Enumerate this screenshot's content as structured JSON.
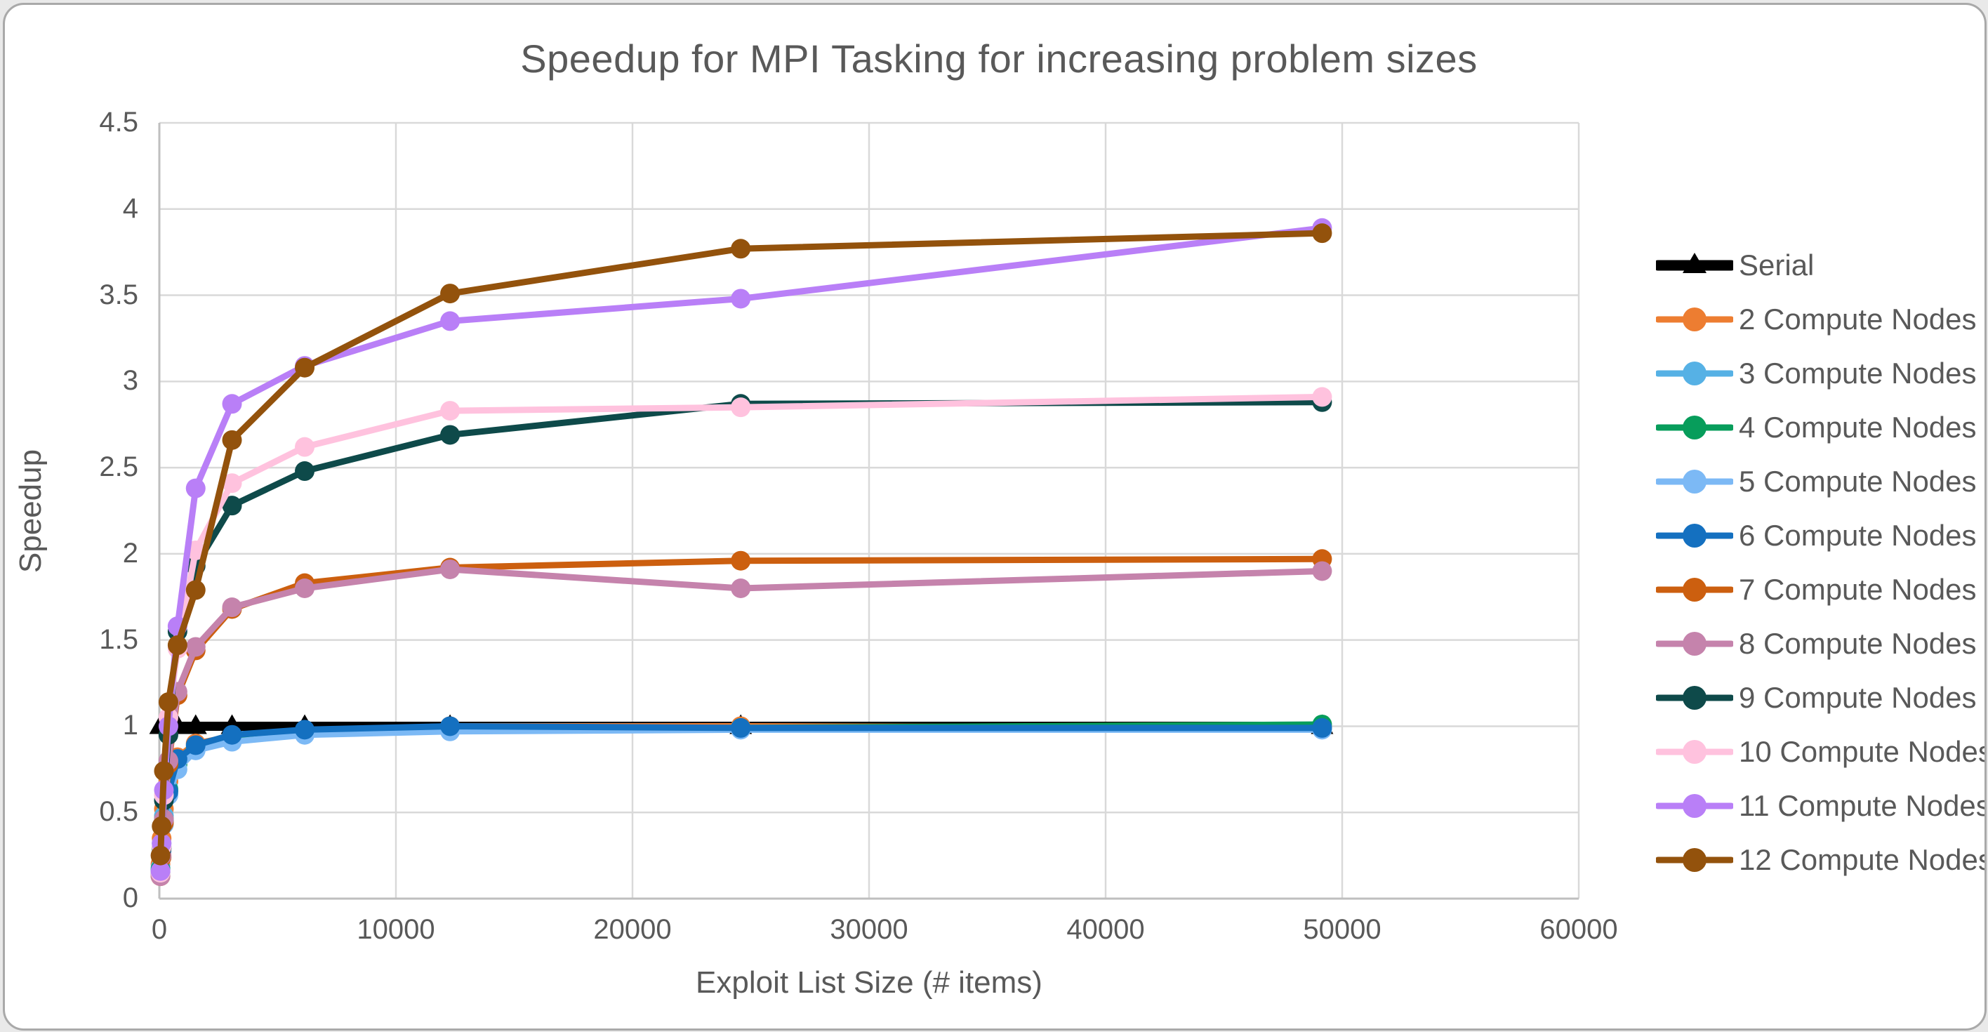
{
  "chart_data": {
    "type": "line",
    "title": "Speedup for MPI Tasking for increasing problem sizes",
    "xlabel": "Exploit List Size (# items)",
    "ylabel": "Speedup",
    "xlim": [
      0,
      60000
    ],
    "ylim": [
      0,
      4.5
    ],
    "x_ticks": [
      0,
      10000,
      20000,
      30000,
      40000,
      50000,
      60000
    ],
    "x_tick_labels": [
      "0",
      "10000",
      "20000",
      "30000",
      "40000",
      "50000",
      "60000"
    ],
    "y_ticks": [
      0,
      0.5,
      1,
      1.5,
      2,
      2.5,
      3,
      3.5,
      4,
      4.5
    ],
    "y_tick_labels": [
      "0",
      "0.5",
      "1",
      "1.5",
      "2",
      "2.5",
      "3",
      "3.5",
      "4",
      "4.5"
    ],
    "grid": true,
    "gridline_color": "#d9d9d9",
    "axis_line_color": "#bfbfbf",
    "text_color": "#595959",
    "legend_position": "right",
    "x": [
      48,
      96,
      192,
      384,
      768,
      1536,
      3072,
      6144,
      12288,
      24576,
      49152
    ],
    "series": [
      {
        "name": "Serial",
        "slug": "serial",
        "color": "#000000",
        "marker": "triangle",
        "values": [
          1.0,
          1.0,
          1.0,
          1.0,
          1.0,
          1.0,
          1.0,
          1.0,
          1.0,
          1.0,
          1.0
        ]
      },
      {
        "name": "2 Compute Nodes",
        "slug": "2-compute-nodes",
        "color": "#ED7D31",
        "marker": "circle",
        "values": [
          0.2,
          0.35,
          0.52,
          0.68,
          0.82,
          0.9,
          0.94,
          0.97,
          1.0,
          1.0,
          0.99
        ]
      },
      {
        "name": "3 Compute Nodes",
        "slug": "3-compute-nodes",
        "color": "#56B1E5",
        "marker": "circle",
        "values": [
          0.18,
          0.32,
          0.48,
          0.64,
          0.79,
          0.88,
          0.92,
          0.96,
          0.98,
          0.99,
          0.99
        ]
      },
      {
        "name": "4 Compute Nodes",
        "slug": "4-compute-nodes",
        "color": "#079D5B",
        "marker": "circle",
        "values": [
          0.17,
          0.3,
          0.46,
          0.63,
          0.78,
          0.87,
          0.93,
          0.96,
          0.99,
          0.99,
          1.01
        ]
      },
      {
        "name": "5 Compute Nodes",
        "slug": "5-compute-nodes",
        "color": "#7CB9F5",
        "marker": "circle",
        "values": [
          0.15,
          0.27,
          0.43,
          0.6,
          0.75,
          0.86,
          0.91,
          0.95,
          0.97,
          0.98,
          0.98
        ]
      },
      {
        "name": "6 Compute Nodes",
        "slug": "6-compute-nodes",
        "color": "#1470C0",
        "marker": "circle",
        "values": [
          0.16,
          0.29,
          0.45,
          0.62,
          0.81,
          0.89,
          0.95,
          0.98,
          1.0,
          0.99,
          0.99
        ]
      },
      {
        "name": "7 Compute Nodes",
        "slug": "7-compute-nodes",
        "color": "#CC5F0F",
        "marker": "circle",
        "values": [
          0.13,
          0.24,
          0.44,
          0.78,
          1.18,
          1.44,
          1.68,
          1.83,
          1.92,
          1.96,
          1.97
        ]
      },
      {
        "name": "8 Compute Nodes",
        "slug": "8-compute-nodes",
        "color": "#C583AC",
        "marker": "circle",
        "values": [
          0.13,
          0.25,
          0.46,
          0.8,
          1.2,
          1.46,
          1.69,
          1.8,
          1.91,
          1.8,
          1.9
        ]
      },
      {
        "name": "9 Compute Nodes",
        "slug": "9-compute-nodes",
        "color": "#0E4A4A",
        "marker": "circle",
        "values": [
          0.15,
          0.29,
          0.57,
          0.95,
          1.55,
          1.93,
          2.28,
          2.48,
          2.69,
          2.87,
          2.88
        ]
      },
      {
        "name": "10 Compute Nodes",
        "slug": "10-compute-nodes",
        "color": "#FFC2DE",
        "marker": "circle",
        "values": [
          0.15,
          0.3,
          0.6,
          1.05,
          1.45,
          2.02,
          2.41,
          2.62,
          2.83,
          2.85,
          2.91
        ]
      },
      {
        "name": "11 Compute Nodes",
        "slug": "11-compute-nodes",
        "color": "#B97FF7",
        "marker": "circle",
        "values": [
          0.16,
          0.32,
          0.63,
          1.0,
          1.58,
          2.38,
          2.87,
          3.09,
          3.35,
          3.48,
          3.89
        ]
      },
      {
        "name": "12 Compute Nodes",
        "slug": "12-compute-nodes",
        "color": "#93520C",
        "marker": "circle",
        "values": [
          0.25,
          0.42,
          0.74,
          1.14,
          1.47,
          1.79,
          2.66,
          3.08,
          3.51,
          3.77,
          3.86
        ]
      }
    ]
  }
}
